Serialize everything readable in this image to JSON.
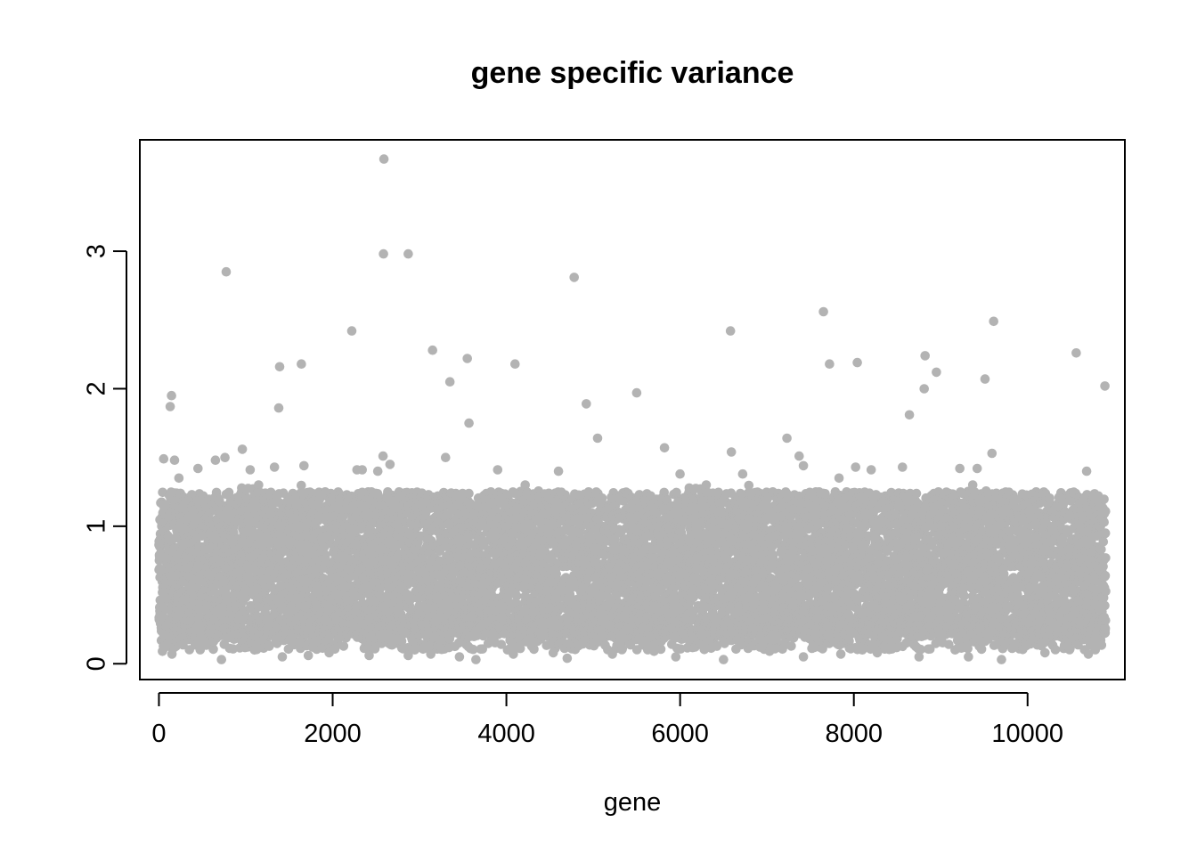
{
  "chart_data": {
    "type": "scatter",
    "title": "gene specific variance",
    "xlabel": "gene",
    "ylabel": "",
    "xlim": [
      -220,
      11120
    ],
    "ylim": [
      -0.115,
      3.81
    ],
    "x_ticks": [
      0,
      2000,
      4000,
      6000,
      8000,
      10000
    ],
    "y_ticks": [
      0,
      1,
      2,
      3
    ],
    "grid": false,
    "legend": "none",
    "point_color": "#b3b3b3",
    "n_genes": 10900,
    "bulk_band": {
      "typical_low": 0.2,
      "typical_high": 1.25
    },
    "highlighted_points": [
      {
        "x": 55,
        "y": 1.49
      },
      {
        "x": 130,
        "y": 1.87
      },
      {
        "x": 145,
        "y": 1.95
      },
      {
        "x": 180,
        "y": 1.48
      },
      {
        "x": 230,
        "y": 1.35
      },
      {
        "x": 450,
        "y": 1.42
      },
      {
        "x": 650,
        "y": 1.48
      },
      {
        "x": 760,
        "y": 1.5
      },
      {
        "x": 775,
        "y": 2.85
      },
      {
        "x": 960,
        "y": 1.56
      },
      {
        "x": 1050,
        "y": 1.41
      },
      {
        "x": 1330,
        "y": 1.43
      },
      {
        "x": 1380,
        "y": 1.86
      },
      {
        "x": 1390,
        "y": 2.16
      },
      {
        "x": 1640,
        "y": 2.18
      },
      {
        "x": 1670,
        "y": 1.44
      },
      {
        "x": 2220,
        "y": 2.42
      },
      {
        "x": 2280,
        "y": 1.41
      },
      {
        "x": 2340,
        "y": 1.41
      },
      {
        "x": 2520,
        "y": 1.4
      },
      {
        "x": 2580,
        "y": 1.51
      },
      {
        "x": 2585,
        "y": 2.98
      },
      {
        "x": 2590,
        "y": 3.67
      },
      {
        "x": 2660,
        "y": 1.45
      },
      {
        "x": 2870,
        "y": 2.98
      },
      {
        "x": 3150,
        "y": 2.28
      },
      {
        "x": 3300,
        "y": 1.5
      },
      {
        "x": 3350,
        "y": 2.05
      },
      {
        "x": 3550,
        "y": 2.22
      },
      {
        "x": 3570,
        "y": 1.75
      },
      {
        "x": 3900,
        "y": 1.41
      },
      {
        "x": 4100,
        "y": 2.18
      },
      {
        "x": 4600,
        "y": 1.4
      },
      {
        "x": 4780,
        "y": 2.81
      },
      {
        "x": 4920,
        "y": 1.89
      },
      {
        "x": 5050,
        "y": 1.64
      },
      {
        "x": 5500,
        "y": 1.97
      },
      {
        "x": 5820,
        "y": 1.57
      },
      {
        "x": 6000,
        "y": 1.38
      },
      {
        "x": 6580,
        "y": 2.42
      },
      {
        "x": 6590,
        "y": 1.54
      },
      {
        "x": 6720,
        "y": 1.38
      },
      {
        "x": 7230,
        "y": 1.64
      },
      {
        "x": 7370,
        "y": 1.51
      },
      {
        "x": 7420,
        "y": 1.44
      },
      {
        "x": 7650,
        "y": 2.56
      },
      {
        "x": 7720,
        "y": 2.18
      },
      {
        "x": 7830,
        "y": 1.35
      },
      {
        "x": 8020,
        "y": 1.43
      },
      {
        "x": 8040,
        "y": 2.19
      },
      {
        "x": 8200,
        "y": 1.41
      },
      {
        "x": 8560,
        "y": 1.43
      },
      {
        "x": 8640,
        "y": 1.81
      },
      {
        "x": 8810,
        "y": 2.0
      },
      {
        "x": 8820,
        "y": 2.24
      },
      {
        "x": 8950,
        "y": 2.12
      },
      {
        "x": 9220,
        "y": 1.42
      },
      {
        "x": 9420,
        "y": 1.42
      },
      {
        "x": 9510,
        "y": 2.07
      },
      {
        "x": 9590,
        "y": 1.53
      },
      {
        "x": 9610,
        "y": 2.49
      },
      {
        "x": 10560,
        "y": 2.26
      },
      {
        "x": 10680,
        "y": 1.4
      },
      {
        "x": 10890,
        "y": 2.02
      },
      {
        "x": 40,
        "y": 0.09
      },
      {
        "x": 150,
        "y": 0.07
      },
      {
        "x": 720,
        "y": 0.03
      },
      {
        "x": 1100,
        "y": 0.1
      },
      {
        "x": 1420,
        "y": 0.05
      },
      {
        "x": 1720,
        "y": 0.06
      },
      {
        "x": 1960,
        "y": 0.08
      },
      {
        "x": 2420,
        "y": 0.06
      },
      {
        "x": 2870,
        "y": 0.06
      },
      {
        "x": 3130,
        "y": 0.07
      },
      {
        "x": 3460,
        "y": 0.05
      },
      {
        "x": 3650,
        "y": 0.03
      },
      {
        "x": 4080,
        "y": 0.07
      },
      {
        "x": 4540,
        "y": 0.08
      },
      {
        "x": 4700,
        "y": 0.04
      },
      {
        "x": 5220,
        "y": 0.07
      },
      {
        "x": 5700,
        "y": 0.09
      },
      {
        "x": 5950,
        "y": 0.05
      },
      {
        "x": 6500,
        "y": 0.03
      },
      {
        "x": 7030,
        "y": 0.09
      },
      {
        "x": 7420,
        "y": 0.05
      },
      {
        "x": 7850,
        "y": 0.07
      },
      {
        "x": 8270,
        "y": 0.08
      },
      {
        "x": 8750,
        "y": 0.05
      },
      {
        "x": 9320,
        "y": 0.05
      },
      {
        "x": 9700,
        "y": 0.03
      },
      {
        "x": 10200,
        "y": 0.08
      },
      {
        "x": 10700,
        "y": 0.07
      }
    ]
  }
}
